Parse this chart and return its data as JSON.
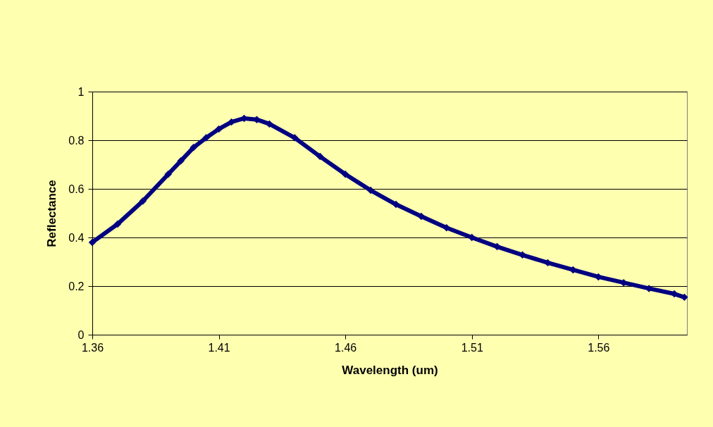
{
  "chart_data": {
    "type": "line",
    "xlabel": "Wavelength (um)",
    "ylabel": "Reflectance",
    "x": [
      1.36,
      1.37,
      1.38,
      1.39,
      1.395,
      1.4,
      1.405,
      1.41,
      1.415,
      1.42,
      1.425,
      1.43,
      1.44,
      1.45,
      1.46,
      1.47,
      1.48,
      1.49,
      1.5,
      1.51,
      1.52,
      1.53,
      1.54,
      1.55,
      1.56,
      1.57,
      1.58,
      1.59,
      1.594
    ],
    "series": [
      {
        "color": "#000080",
        "values": [
          0.38,
          0.455,
          0.55,
          0.66,
          0.715,
          0.77,
          0.81,
          0.846,
          0.875,
          0.89,
          0.885,
          0.867,
          0.81,
          0.733,
          0.66,
          0.594,
          0.536,
          0.487,
          0.44,
          0.4,
          0.362,
          0.328,
          0.296,
          0.267,
          0.238,
          0.214,
          0.19,
          0.168,
          0.154
        ]
      }
    ],
    "xlim": [
      1.36,
      1.595
    ],
    "xticks": [
      1.36,
      1.41,
      1.46,
      1.51,
      1.56
    ],
    "ylim": [
      0,
      1
    ],
    "yticks": [
      0,
      0.2,
      0.4,
      0.6,
      0.8,
      1
    ],
    "grid": "y",
    "marker": "diamond",
    "line_style": "solid"
  }
}
